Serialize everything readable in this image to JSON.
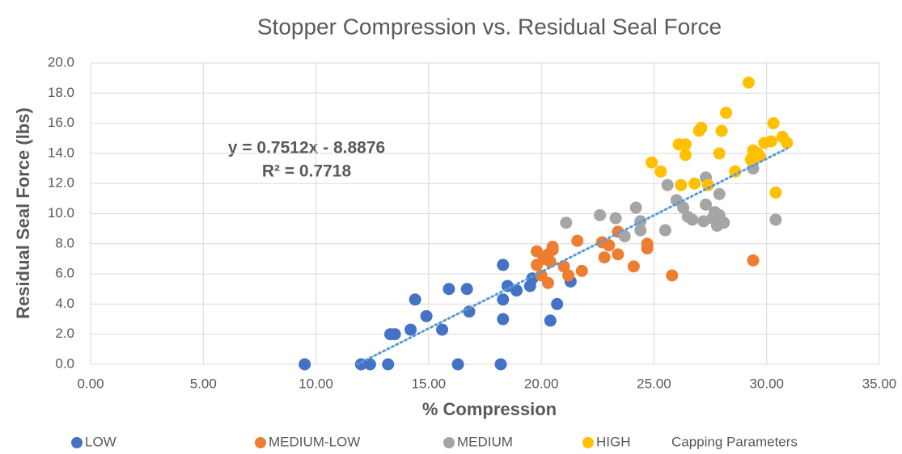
{
  "chart_data": {
    "type": "scatter",
    "title": "Stopper Compression vs. Residual Seal Force",
    "x_label": "% Compression",
    "y_label": "Residual Seal Force (lbs)",
    "xlim": [
      0,
      35
    ],
    "xticks": [
      {
        "value": 0,
        "label": "0.00"
      },
      {
        "value": 5,
        "label": "5.00"
      },
      {
        "value": 10,
        "label": "10.00"
      },
      {
        "value": 15,
        "label": "15.00"
      },
      {
        "value": 20,
        "label": "20.00"
      },
      {
        "value": 25,
        "label": "25.00"
      },
      {
        "value": 30,
        "label": "30.00"
      },
      {
        "value": 35,
        "label": "35.00"
      }
    ],
    "ylim": [
      0,
      20
    ],
    "yticks": [
      {
        "value": 0,
        "label": "0.0"
      },
      {
        "value": 2,
        "label": "2.0"
      },
      {
        "value": 4,
        "label": "4.0"
      },
      {
        "value": 6,
        "label": "6.0"
      },
      {
        "value": 8,
        "label": "8.0"
      },
      {
        "value": 10,
        "label": "10.0"
      },
      {
        "value": 12,
        "label": "12.0"
      },
      {
        "value": 14,
        "label": "14.0"
      },
      {
        "value": 16,
        "label": "16.0"
      },
      {
        "value": 18,
        "label": "18.0"
      },
      {
        "value": 20,
        "label": "20.0"
      }
    ],
    "grid": true,
    "legend": "bottom",
    "series": [
      {
        "name": "LOW",
        "color": "#4472c4",
        "x": [
          9.5,
          12.0,
          12.4,
          13.2,
          13.3,
          13.5,
          14.2,
          14.4,
          14.9,
          15.6,
          15.9,
          16.3,
          16.7,
          16.8,
          18.2,
          18.3,
          18.3,
          18.3,
          18.5,
          18.9,
          19.5,
          19.6,
          20.4,
          20.7,
          21.3
        ],
        "values": [
          0,
          0,
          0,
          0,
          2.0,
          2.0,
          2.3,
          4.3,
          3.2,
          2.3,
          5.0,
          0,
          5.0,
          3.5,
          0,
          6.6,
          4.3,
          3.0,
          5.2,
          4.9,
          5.2,
          5.7,
          2.9,
          4.0,
          5.5
        ]
      },
      {
        "name": "MEDIUM-LOW",
        "color": "#ed7d31",
        "x": [
          19.8,
          19.8,
          20.0,
          20.1,
          20.3,
          20.3,
          20.4,
          20.5,
          20.5,
          21.0,
          21.2,
          21.6,
          21.8,
          22.7,
          22.8,
          23.0,
          23.4,
          23.4,
          24.1,
          24.7,
          24.7,
          25.8,
          29.4
        ],
        "values": [
          7.5,
          6.6,
          5.9,
          7.0,
          5.4,
          7.3,
          6.8,
          7.6,
          7.8,
          6.5,
          5.9,
          8.2,
          6.2,
          8.1,
          7.1,
          7.9,
          8.8,
          7.3,
          6.5,
          8.0,
          7.7,
          5.9,
          6.9
        ]
      },
      {
        "name": "MEDIUM",
        "color": "#a5a5a5",
        "x": [
          21.1,
          22.6,
          23.3,
          23.7,
          24.2,
          24.4,
          24.4,
          25.5,
          25.6,
          26.0,
          26.3,
          26.5,
          26.7,
          27.2,
          27.3,
          27.3,
          27.6,
          27.7,
          27.8,
          27.9,
          27.9,
          28.1,
          29.4,
          30.4
        ],
        "values": [
          9.4,
          9.9,
          9.7,
          8.5,
          10.4,
          9.5,
          8.9,
          8.9,
          11.9,
          10.9,
          10.4,
          9.8,
          9.6,
          9.5,
          12.4,
          10.6,
          9.7,
          10.1,
          9.2,
          9.9,
          11.3,
          9.4,
          13.0,
          9.6
        ]
      },
      {
        "name": "HIGH",
        "color": "#ffc000",
        "x": [
          24.9,
          25.3,
          26.1,
          26.2,
          26.4,
          26.4,
          26.8,
          27.0,
          27.1,
          27.4,
          27.9,
          28.0,
          28.2,
          28.6,
          29.2,
          29.3,
          29.4,
          29.6,
          29.7,
          29.9,
          30.2,
          30.3,
          30.4,
          30.7,
          30.9
        ],
        "values": [
          13.4,
          12.8,
          14.6,
          11.9,
          14.6,
          13.9,
          12.0,
          15.5,
          15.7,
          11.9,
          14.0,
          15.5,
          16.7,
          12.8,
          18.7,
          13.6,
          14.2,
          14.0,
          13.8,
          14.7,
          14.8,
          16.0,
          11.4,
          15.1,
          14.7
        ]
      }
    ],
    "trendline": {
      "name": "Capping Parameters",
      "color": "#5b9bd5",
      "slope": 0.7512,
      "intercept": -8.8876,
      "equation": "y = 0.7512x - 8.8876",
      "r2_label": "R² = 0.7718"
    }
  }
}
